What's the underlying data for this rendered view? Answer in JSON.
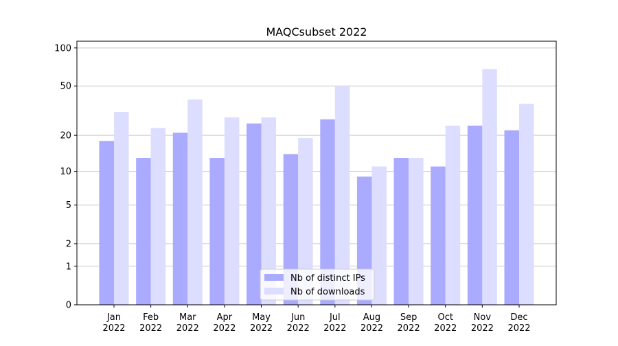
{
  "chart_data": {
    "type": "bar",
    "title": "MAQCsubset 2022",
    "categories": [
      "Jan 2022",
      "Feb 2022",
      "Mar 2022",
      "Apr 2022",
      "May 2022",
      "Jun 2022",
      "Jul 2022",
      "Aug 2022",
      "Sep 2022",
      "Oct 2022",
      "Nov 2022",
      "Dec 2022"
    ],
    "series": [
      {
        "name": "Nb of distinct IPs",
        "color": "#aaaaff",
        "values": [
          18,
          13,
          21,
          13,
          25,
          14,
          27,
          9,
          13,
          11,
          24,
          22
        ]
      },
      {
        "name": "Nb of downloads",
        "color": "#ddddff",
        "values": [
          31,
          23,
          39,
          28,
          28,
          19,
          50,
          11,
          13,
          24,
          68,
          36
        ]
      }
    ],
    "yscale": "log1p",
    "ylim": [
      0,
      113
    ],
    "yticks": [
      0,
      1,
      2,
      5,
      10,
      20,
      50,
      100
    ],
    "grid": true,
    "legend": "lower center"
  }
}
